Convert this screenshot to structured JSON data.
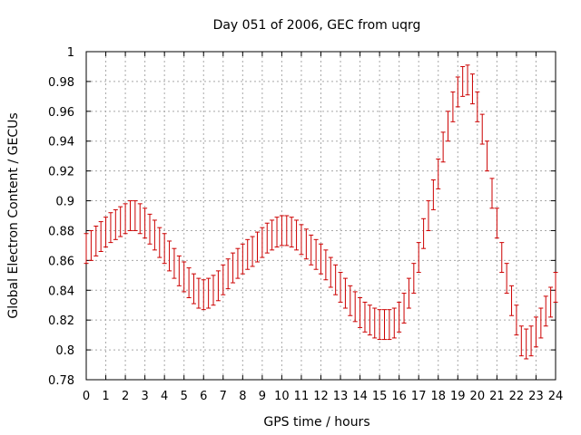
{
  "chart_data": {
    "type": "scatter",
    "title": "Day 051 of 2006, GEC from uqrg",
    "xlabel": "GPS time / hours",
    "ylabel": "Global Electron Content / GECUs",
    "xlim": [
      0,
      24
    ],
    "ylim": [
      0.78,
      1.0
    ],
    "xticks": [
      "0",
      "1",
      "2",
      "3",
      "4",
      "5",
      "6",
      "7",
      "8",
      "9",
      "10",
      "11",
      "12",
      "13",
      "14",
      "15",
      "16",
      "17",
      "18",
      "19",
      "20",
      "21",
      "22",
      "23",
      "24"
    ],
    "yticks": [
      "0.78",
      "0.8",
      "0.82",
      "0.84",
      "0.86",
      "0.88",
      "0.9",
      "0.92",
      "0.94",
      "0.96",
      "0.98",
      "1"
    ],
    "grid": true,
    "error_bar": 0.01,
    "series": [
      {
        "color": "#cc0000",
        "x": [
          0,
          0.25,
          0.5,
          0.75,
          1,
          1.25,
          1.5,
          1.75,
          2,
          2.25,
          2.5,
          2.75,
          3,
          3.25,
          3.5,
          3.75,
          4,
          4.25,
          4.5,
          4.75,
          5,
          5.25,
          5.5,
          5.75,
          6,
          6.25,
          6.5,
          6.75,
          7,
          7.25,
          7.5,
          7.75,
          8,
          8.25,
          8.5,
          8.75,
          9,
          9.25,
          9.5,
          9.75,
          10,
          10.25,
          10.5,
          10.75,
          11,
          11.25,
          11.5,
          11.75,
          12,
          12.25,
          12.5,
          12.75,
          13,
          13.25,
          13.5,
          13.75,
          14,
          14.25,
          14.5,
          14.75,
          15,
          15.25,
          15.5,
          15.75,
          16,
          16.25,
          16.5,
          16.75,
          17,
          17.25,
          17.5,
          17.75,
          18,
          18.25,
          18.5,
          18.75,
          19,
          19.25,
          19.5,
          19.75,
          20,
          20.25,
          20.5,
          20.75,
          21,
          21.25,
          21.5,
          21.75,
          22,
          22.25,
          22.5,
          22.75,
          23,
          23.25,
          23.5,
          23.75,
          24
        ],
        "y": [
          0.868,
          0.87,
          0.873,
          0.876,
          0.879,
          0.882,
          0.884,
          0.886,
          0.888,
          0.89,
          0.89,
          0.888,
          0.885,
          0.881,
          0.877,
          0.872,
          0.868,
          0.863,
          0.858,
          0.853,
          0.849,
          0.845,
          0.841,
          0.838,
          0.837,
          0.838,
          0.84,
          0.843,
          0.847,
          0.851,
          0.855,
          0.858,
          0.861,
          0.864,
          0.866,
          0.869,
          0.872,
          0.875,
          0.877,
          0.879,
          0.88,
          0.88,
          0.879,
          0.877,
          0.874,
          0.871,
          0.867,
          0.864,
          0.861,
          0.857,
          0.852,
          0.847,
          0.842,
          0.838,
          0.833,
          0.829,
          0.825,
          0.822,
          0.82,
          0.818,
          0.817,
          0.817,
          0.817,
          0.818,
          0.822,
          0.828,
          0.838,
          0.848,
          0.862,
          0.878,
          0.89,
          0.904,
          0.918,
          0.936,
          0.95,
          0.963,
          0.973,
          0.98,
          0.981,
          0.975,
          0.963,
          0.948,
          0.93,
          0.905,
          0.885,
          0.862,
          0.848,
          0.833,
          0.82,
          0.806,
          0.804,
          0.806,
          0.812,
          0.818,
          0.826,
          0.832,
          0.842
        ]
      }
    ]
  }
}
